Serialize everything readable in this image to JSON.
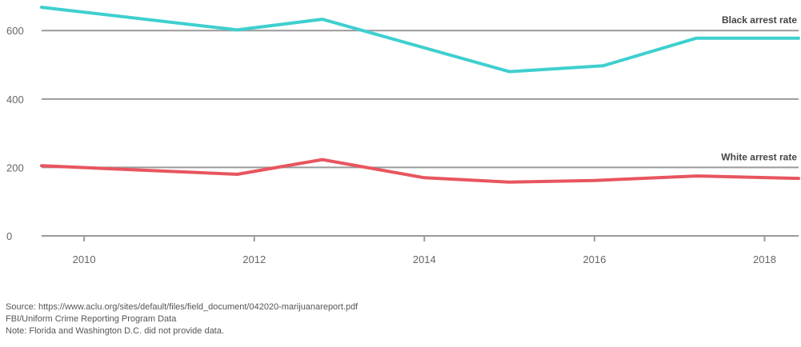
{
  "chart_data": {
    "type": "line",
    "x": [
      2009.5,
      2011.8,
      2012.8,
      2015.0,
      2016.1,
      2017.2,
      2018.4
    ],
    "series": [
      {
        "name": "Black arrest rate",
        "color": "#3fcfcf",
        "x": [
          2009.5,
          2011.8,
          2012.8,
          2015.0,
          2016.1,
          2017.2,
          2018.4
        ],
        "values": [
          668,
          602,
          633,
          480,
          497,
          578,
          578
        ]
      },
      {
        "name": "White arrest rate",
        "color": "#e8555f",
        "x": [
          2009.5,
          2011.8,
          2012.8,
          2014.0,
          2015.0,
          2016.0,
          2017.2,
          2018.4
        ],
        "values": [
          205,
          180,
          223,
          170,
          157,
          162,
          175,
          168
        ]
      }
    ],
    "xticks": [
      "2010",
      "2012",
      "2014",
      "2016",
      "2018"
    ],
    "yticks": [
      "0",
      "200",
      "400",
      "600"
    ],
    "xlim": [
      2009.5,
      2018.4
    ],
    "ylim": [
      0,
      680
    ],
    "grid": true,
    "title": "",
    "xlabel": "",
    "ylabel": ""
  },
  "notes": {
    "source": "Source:  https://www.aclu.org/sites/default/files/field_document/042020-marijuanareport.pdf",
    "data_source": "FBI/Uniform Crime Reporting Program Data",
    "note": "Note: Florida and Washington D.C. did not provide data."
  }
}
